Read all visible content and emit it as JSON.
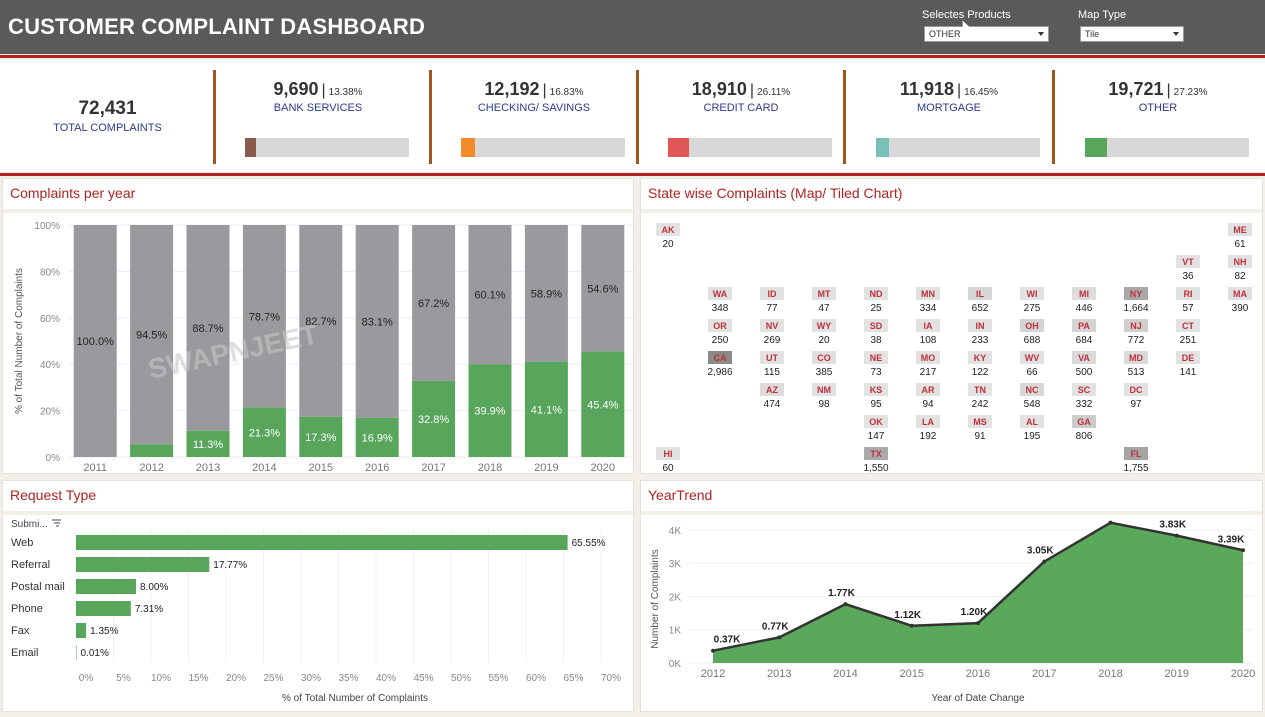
{
  "header": {
    "title": "CUSTOMER COMPLAINT DASHBOARD",
    "products_label": "Selectes Products",
    "products_value": "OTHER",
    "maptype_label": "Map Type",
    "maptype_value": "Tile"
  },
  "kpi": {
    "total_value": "72,431",
    "total_label": "TOTAL COMPLAINTS",
    "cards": [
      {
        "value": "9,690",
        "pct": "13.38%",
        "name": "BANK SERVICES",
        "share": 0.1338,
        "color": "#8b5a4f"
      },
      {
        "value": "12,192",
        "pct": "16.83%",
        "name": "CHECKING/ SAVINGS",
        "share": 0.1683,
        "color": "#f28c28"
      },
      {
        "value": "18,910",
        "pct": "26.11%",
        "name": "CREDIT CARD",
        "share": 0.2611,
        "color": "#e05656"
      },
      {
        "value": "11,918",
        "pct": "16.45%",
        "name": "MORTGAGE",
        "share": 0.1645,
        "color": "#78c0b8"
      },
      {
        "value": "19,721",
        "pct": "27.23%",
        "name": "OTHER",
        "share": 0.2723,
        "color": "#58a55c"
      }
    ]
  },
  "per_year": {
    "title": "Complaints per year",
    "ylabel": "% of Total Number of Complaints",
    "watermark": "SWAPNJEET",
    "yticks": [
      "100%",
      "80%",
      "60%",
      "40%",
      "20%",
      "0%"
    ]
  },
  "state": {
    "title": "State wise Complaints (Map/ Tiled Chart)",
    "tiles": [
      {
        "code": "AK",
        "value": "20",
        "col": 0,
        "row": 0,
        "shade": "#e2e2e2"
      },
      {
        "code": "ME",
        "value": "61",
        "col": 11,
        "row": 0,
        "shade": "#e2e2e2"
      },
      {
        "code": "VT",
        "value": "36",
        "col": 10,
        "row": 1,
        "shade": "#e2e2e2"
      },
      {
        "code": "NH",
        "value": "82",
        "col": 11,
        "row": 1,
        "shade": "#e2e2e2"
      },
      {
        "code": "WA",
        "value": "348",
        "col": 1,
        "row": 2,
        "shade": "#e2e2e2"
      },
      {
        "code": "ID",
        "value": "77",
        "col": 2,
        "row": 2,
        "shade": "#e2e2e2"
      },
      {
        "code": "MT",
        "value": "47",
        "col": 3,
        "row": 2,
        "shade": "#e2e2e2"
      },
      {
        "code": "ND",
        "value": "25",
        "col": 4,
        "row": 2,
        "shade": "#e2e2e2"
      },
      {
        "code": "MN",
        "value": "334",
        "col": 5,
        "row": 2,
        "shade": "#e2e2e2"
      },
      {
        "code": "IL",
        "value": "652",
        "col": 6,
        "row": 2,
        "shade": "#d6d6d6"
      },
      {
        "code": "WI",
        "value": "275",
        "col": 7,
        "row": 2,
        "shade": "#e2e2e2"
      },
      {
        "code": "MI",
        "value": "446",
        "col": 8,
        "row": 2,
        "shade": "#dddddd"
      },
      {
        "code": "NY",
        "value": "1,664",
        "col": 9,
        "row": 2,
        "shade": "#a8a8a8"
      },
      {
        "code": "RI",
        "value": "57",
        "col": 10,
        "row": 2,
        "shade": "#e2e2e2"
      },
      {
        "code": "MA",
        "value": "390",
        "col": 11,
        "row": 2,
        "shade": "#e0e0e0"
      },
      {
        "code": "OR",
        "value": "250",
        "col": 1,
        "row": 3,
        "shade": "#e2e2e2"
      },
      {
        "code": "NV",
        "value": "269",
        "col": 2,
        "row": 3,
        "shade": "#e2e2e2"
      },
      {
        "code": "WY",
        "value": "20",
        "col": 3,
        "row": 3,
        "shade": "#e2e2e2"
      },
      {
        "code": "SD",
        "value": "38",
        "col": 4,
        "row": 3,
        "shade": "#e2e2e2"
      },
      {
        "code": "IA",
        "value": "108",
        "col": 5,
        "row": 3,
        "shade": "#e2e2e2"
      },
      {
        "code": "IN",
        "value": "233",
        "col": 6,
        "row": 3,
        "shade": "#e2e2e2"
      },
      {
        "code": "OH",
        "value": "688",
        "col": 7,
        "row": 3,
        "shade": "#d4d4d4"
      },
      {
        "code": "PA",
        "value": "684",
        "col": 8,
        "row": 3,
        "shade": "#d4d4d4"
      },
      {
        "code": "NJ",
        "value": "772",
        "col": 9,
        "row": 3,
        "shade": "#cfcfcf"
      },
      {
        "code": "CT",
        "value": "251",
        "col": 10,
        "row": 3,
        "shade": "#e2e2e2"
      },
      {
        "code": "CA",
        "value": "2,986",
        "col": 1,
        "row": 4,
        "shade": "#8a8a8a"
      },
      {
        "code": "UT",
        "value": "115",
        "col": 2,
        "row": 4,
        "shade": "#e2e2e2"
      },
      {
        "code": "CO",
        "value": "385",
        "col": 3,
        "row": 4,
        "shade": "#e0e0e0"
      },
      {
        "code": "NE",
        "value": "73",
        "col": 4,
        "row": 4,
        "shade": "#e2e2e2"
      },
      {
        "code": "MO",
        "value": "217",
        "col": 5,
        "row": 4,
        "shade": "#e2e2e2"
      },
      {
        "code": "KY",
        "value": "122",
        "col": 6,
        "row": 4,
        "shade": "#e2e2e2"
      },
      {
        "code": "WV",
        "value": "66",
        "col": 7,
        "row": 4,
        "shade": "#e2e2e2"
      },
      {
        "code": "VA",
        "value": "500",
        "col": 8,
        "row": 4,
        "shade": "#dadada"
      },
      {
        "code": "MD",
        "value": "513",
        "col": 9,
        "row": 4,
        "shade": "#dadada"
      },
      {
        "code": "DE",
        "value": "141",
        "col": 10,
        "row": 4,
        "shade": "#e2e2e2"
      },
      {
        "code": "AZ",
        "value": "474",
        "col": 2,
        "row": 5,
        "shade": "#dcdcdc"
      },
      {
        "code": "NM",
        "value": "98",
        "col": 3,
        "row": 5,
        "shade": "#e2e2e2"
      },
      {
        "code": "KS",
        "value": "95",
        "col": 4,
        "row": 5,
        "shade": "#e2e2e2"
      },
      {
        "code": "AR",
        "value": "94",
        "col": 5,
        "row": 5,
        "shade": "#e2e2e2"
      },
      {
        "code": "TN",
        "value": "242",
        "col": 6,
        "row": 5,
        "shade": "#e2e2e2"
      },
      {
        "code": "NC",
        "value": "548",
        "col": 7,
        "row": 5,
        "shade": "#d8d8d8"
      },
      {
        "code": "SC",
        "value": "332",
        "col": 8,
        "row": 5,
        "shade": "#e2e2e2"
      },
      {
        "code": "DC",
        "value": "97",
        "col": 9,
        "row": 5,
        "shade": "#e2e2e2"
      },
      {
        "code": "OK",
        "value": "147",
        "col": 4,
        "row": 6,
        "shade": "#e2e2e2"
      },
      {
        "code": "LA",
        "value": "192",
        "col": 5,
        "row": 6,
        "shade": "#e2e2e2"
      },
      {
        "code": "MS",
        "value": "91",
        "col": 6,
        "row": 6,
        "shade": "#e2e2e2"
      },
      {
        "code": "AL",
        "value": "195",
        "col": 7,
        "row": 6,
        "shade": "#e2e2e2"
      },
      {
        "code": "GA",
        "value": "806",
        "col": 8,
        "row": 6,
        "shade": "#cccccc"
      },
      {
        "code": "HI",
        "value": "60",
        "col": 0,
        "row": 7,
        "shade": "#e2e2e2"
      },
      {
        "code": "TX",
        "value": "1,550",
        "col": 4,
        "row": 7,
        "shade": "#aaaaaa"
      },
      {
        "code": "FL",
        "value": "1,755",
        "col": 9,
        "row": 7,
        "shade": "#a4a4a4"
      }
    ]
  },
  "request": {
    "title": "Request Type",
    "column_header": "Submi...",
    "xlabel": "% of Total Number of Complaints"
  },
  "trend": {
    "title": "YearTrend",
    "ylabel": "Number of Complaints",
    "xlabel": "Year of Date Change"
  },
  "chart_data": [
    {
      "type": "bar",
      "title": "Complaints per year",
      "ylabel": "% of Total Number of Complaints",
      "categories": [
        "2011",
        "2012",
        "2013",
        "2014",
        "2015",
        "2016",
        "2017",
        "2018",
        "2019",
        "2020"
      ],
      "series": [
        {
          "name": "",
          "values": [
            100.0,
            94.5,
            88.7,
            78.7,
            82.7,
            83.1,
            67.2,
            60.1,
            58.9,
            54.6
          ],
          "labels": [
            "100.0%",
            "94.5%",
            "88.7%",
            "78.7%",
            "82.7%",
            "83.1%",
            "67.2%",
            "60.1%",
            "58.9%",
            "54.6%"
          ],
          "color": "#9a9a9e"
        },
        {
          "name": "",
          "values": [
            0,
            5.5,
            11.3,
            21.3,
            17.3,
            16.9,
            32.8,
            39.9,
            41.1,
            45.4
          ],
          "labels": [
            "",
            "",
            "11.3%",
            "21.3%",
            "17.3%",
            "16.9%",
            "32.8%",
            "39.9%",
            "41.1%",
            "45.4%"
          ],
          "color": "#58a55c"
        }
      ],
      "ylim": [
        0,
        100
      ],
      "stacked": true
    },
    {
      "type": "bar",
      "orientation": "horizontal",
      "title": "Request Type",
      "xlabel": "% of Total Number of Complaints",
      "categories": [
        "Web",
        "Referral",
        "Postal mail",
        "Phone",
        "Fax",
        "Email"
      ],
      "values": [
        65.55,
        17.77,
        8.0,
        7.31,
        1.35,
        0.01
      ],
      "labels": [
        "65.55%",
        "17.77%",
        "8.00%",
        "7.31%",
        "1.35%",
        "0.01%"
      ],
      "xticks": [
        "0%",
        "5%",
        "10%",
        "15%",
        "20%",
        "25%",
        "30%",
        "35%",
        "40%",
        "45%",
        "50%",
        "55%",
        "60%",
        "65%",
        "70%"
      ],
      "xlim": [
        0,
        70
      ],
      "color": "#58a55c"
    },
    {
      "type": "area",
      "title": "YearTrend",
      "xlabel": "Year of Date Change",
      "ylabel": "Number of Complaints",
      "x": [
        "2012",
        "2013",
        "2014",
        "2015",
        "2016",
        "2017",
        "2018",
        "2019",
        "2020"
      ],
      "values": [
        370,
        770,
        1770,
        1120,
        1200,
        3050,
        4220,
        3830,
        3390
      ],
      "labels": [
        "0.37K",
        "0.77K",
        "1.77K",
        "1.12K",
        "1.20K",
        "3.05K",
        "4.22K",
        "3.83K",
        "3.39K"
      ],
      "yticks": [
        "4K",
        "3K",
        "2K",
        "1K",
        "0K"
      ],
      "ylim": [
        0,
        4200
      ],
      "color": "#5aa85a"
    }
  ]
}
